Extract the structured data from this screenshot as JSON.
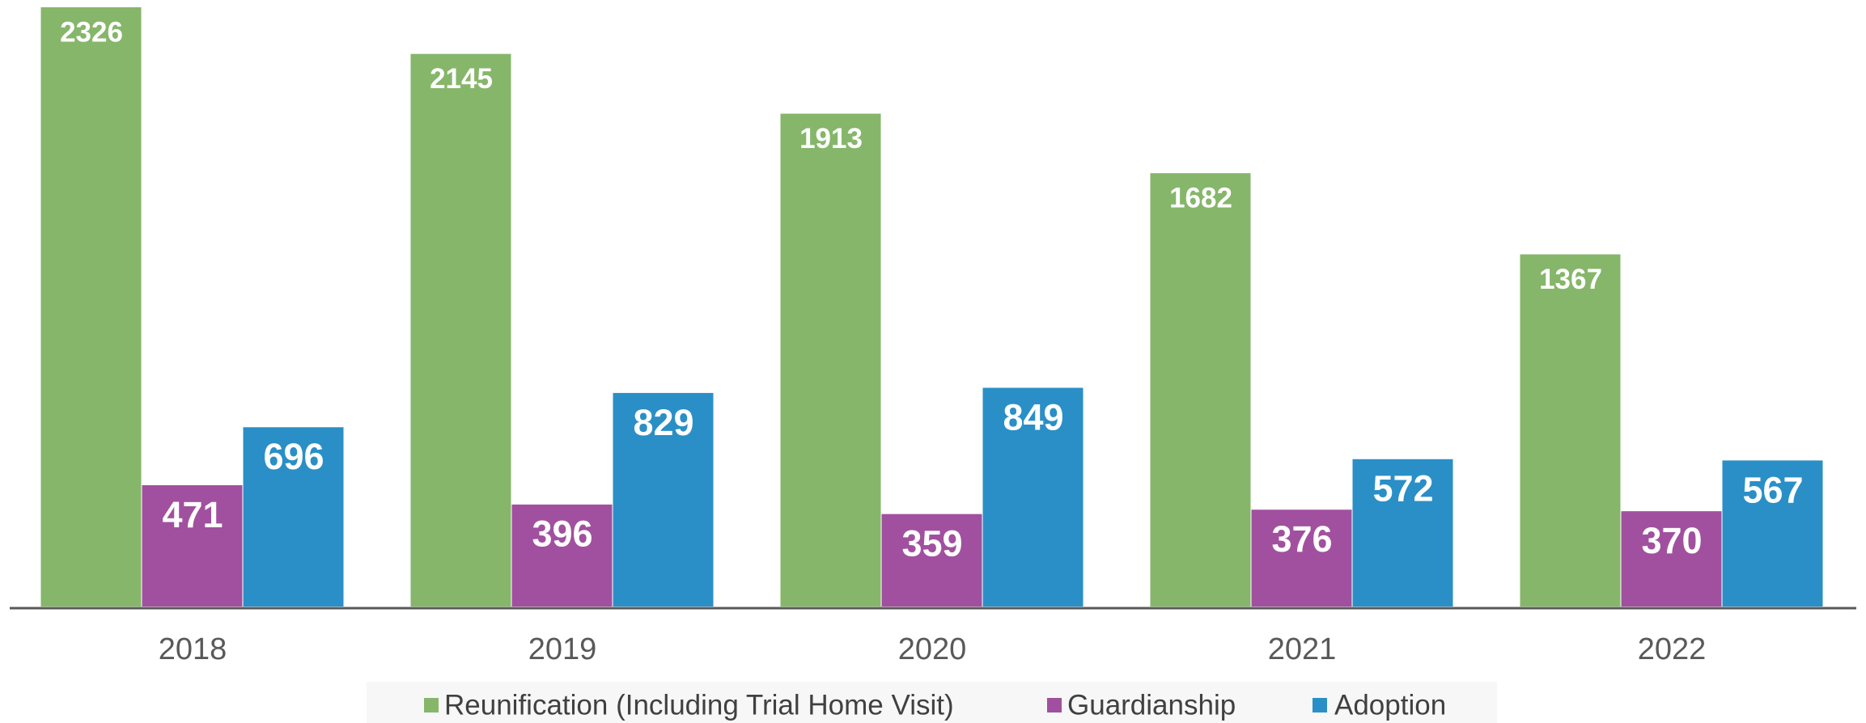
{
  "chart_data": {
    "type": "bar",
    "categories": [
      "2018",
      "2019",
      "2020",
      "2021",
      "2022"
    ],
    "series": [
      {
        "name": "Reunification (Including Trial Home Visit)",
        "color": "#86b66a",
        "values": [
          2326,
          2145,
          1913,
          1682,
          1367
        ]
      },
      {
        "name": "Guardianship",
        "color": "#a1509f",
        "values": [
          471,
          396,
          359,
          376,
          370
        ]
      },
      {
        "name": "Adoption",
        "color": "#2a8fc6",
        "values": [
          696,
          829,
          849,
          572,
          567
        ]
      }
    ],
    "legend": "bottom"
  }
}
